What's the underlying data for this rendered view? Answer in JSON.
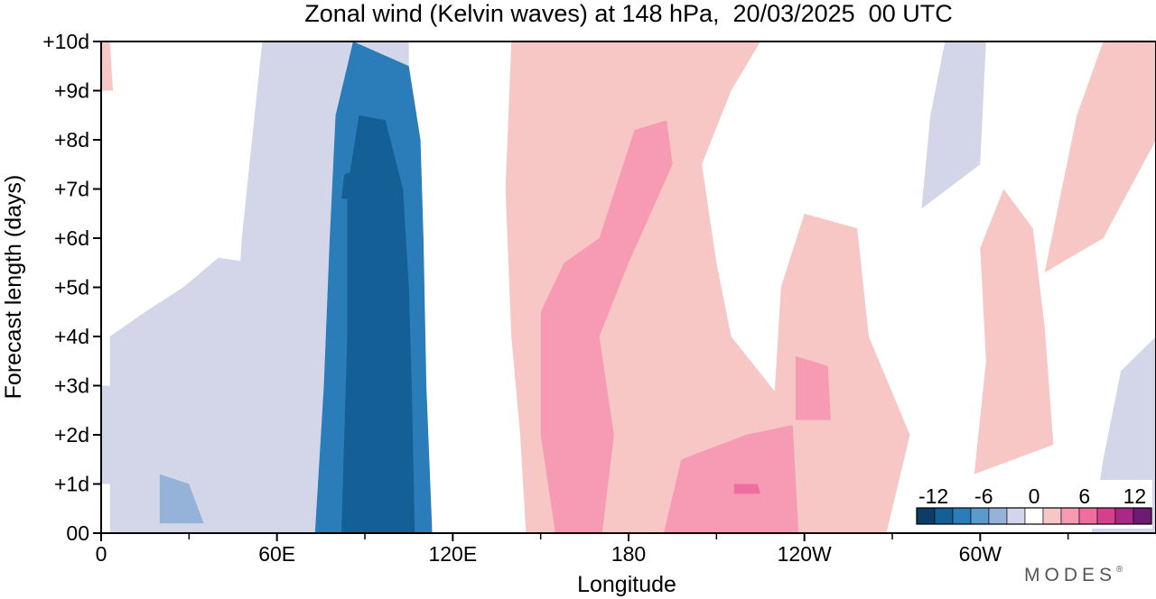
{
  "chart_data": {
    "type": "heatmap",
    "title": "Zonal wind (Kelvin waves) at 148 hPa,  20/03/2025  00 UTC",
    "xlabel": "Longitude",
    "ylabel": "Forecast length (days)",
    "x_ticks": [
      {
        "lon": 0,
        "label": "0"
      },
      {
        "lon": 60,
        "label": "60E"
      },
      {
        "lon": 120,
        "label": "120E"
      },
      {
        "lon": 180,
        "label": "180"
      },
      {
        "lon": 240,
        "label": "120W"
      },
      {
        "lon": 300,
        "label": "60W"
      }
    ],
    "x_minor_ticks": [
      30,
      90,
      150,
      210,
      270,
      330
    ],
    "xlim": [
      0,
      360
    ],
    "y_ticks": [
      {
        "day": 0,
        "label": "00"
      },
      {
        "day": 1,
        "label": "+1d"
      },
      {
        "day": 2,
        "label": "+2d"
      },
      {
        "day": 3,
        "label": "+3d"
      },
      {
        "day": 4,
        "label": "+4d"
      },
      {
        "day": 5,
        "label": "+5d"
      },
      {
        "day": 6,
        "label": "+6d"
      },
      {
        "day": 7,
        "label": "+7d"
      },
      {
        "day": 8,
        "label": "+8d"
      },
      {
        "day": 9,
        "label": "+9d"
      },
      {
        "day": 10,
        "label": "+10d"
      }
    ],
    "ylim": [
      0,
      10
    ],
    "levels": [
      -14,
      -12,
      -10,
      -8,
      -6,
      -4,
      -2,
      2,
      4,
      6,
      8,
      10,
      12,
      14
    ],
    "colorbar": {
      "labels": [
        {
          "value": -12,
          "label": "-12"
        },
        {
          "value": -6,
          "label": "-6"
        },
        {
          "value": 0,
          "label": "0"
        },
        {
          "value": 6,
          "label": "6"
        },
        {
          "value": 12,
          "label": "12"
        }
      ],
      "colors": [
        "#0b3d66",
        "#155f97",
        "#2a7db8",
        "#5a9acc",
        "#95b3d8",
        "#d2d6e8",
        "#ffffff",
        "#f7c7c5",
        "#f69bb3",
        "#ee6e9f",
        "#d63f8c",
        "#a92a86",
        "#6e1a72"
      ]
    },
    "regions": [
      {
        "name": "easterly-band-east-indian-ocean",
        "level": -4,
        "lon_range": [
          62,
          100
        ],
        "day_range": [
          0,
          10
        ],
        "note": "lon 55-103 at day 0 tilting to 58-102 at day 10"
      },
      {
        "name": "easterly-band-core",
        "level": -8,
        "lon_range": [
          72,
          113
        ],
        "day_range": [
          0,
          10
        ]
      },
      {
        "name": "easterly-band-max",
        "level": -12,
        "lon_range": [
          84,
          108
        ],
        "day_range": [
          0,
          8.5
        ]
      },
      {
        "name": "easterly-west-indian-ocean",
        "level": -2,
        "lon_range": [
          3,
          60
        ],
        "day_range": [
          0,
          5.6
        ]
      },
      {
        "name": "westerly-central-pacific",
        "level": 2,
        "lon_range": [
          145,
          245
        ],
        "day_range": [
          0,
          10
        ]
      },
      {
        "name": "westerly-central-pacific-core",
        "level": 6,
        "lon_range": [
          155,
          195
        ],
        "day_range": [
          0,
          8.4
        ]
      },
      {
        "name": "westerly-date-line-low-level",
        "level": 6,
        "lon_range": [
          192,
          238
        ],
        "day_range": [
          0,
          2.2
        ]
      },
      {
        "name": "westerly-east-pacific",
        "level": 2,
        "lon_range": [
          225,
          275
        ],
        "day_range": [
          0,
          6.5
        ]
      },
      {
        "name": "westerly-atlantic",
        "level": 2,
        "lon_range": [
          298,
          325
        ],
        "day_range": [
          1,
          7
        ]
      },
      {
        "name": "westerly-africa",
        "level": 2,
        "lon_range": [
          322,
          360
        ],
        "day_range": [
          5.2,
          10
        ]
      },
      {
        "name": "easterly-atlantic-upper",
        "level": -2,
        "lon_range": [
          280,
          302
        ],
        "day_range": [
          6.5,
          10
        ]
      },
      {
        "name": "easterly-africa-low",
        "level": -2,
        "lon_range": [
          330,
          360
        ],
        "day_range": [
          0,
          4
        ]
      }
    ]
  },
  "logo": {
    "text": "MODES",
    "mark": "®"
  }
}
